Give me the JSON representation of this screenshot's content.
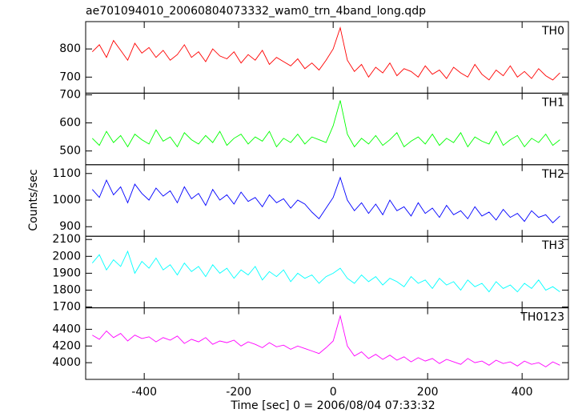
{
  "chart_data": [
    {
      "type": "line",
      "title": "ae701094010_20060804073332_wam0_trn_4band_long.qdp",
      "x": [
        -510,
        -495,
        -480,
        -465,
        -450,
        -435,
        -420,
        -405,
        -390,
        -375,
        -360,
        -345,
        -330,
        -315,
        -300,
        -285,
        -270,
        -255,
        -240,
        -225,
        -210,
        -195,
        -180,
        -165,
        -150,
        -135,
        -120,
        -105,
        -90,
        -75,
        -60,
        -45,
        -30,
        -15,
        0,
        15,
        30,
        45,
        60,
        75,
        90,
        105,
        120,
        135,
        150,
        165,
        180,
        195,
        210,
        225,
        240,
        255,
        270,
        285,
        300,
        315,
        330,
        345,
        360,
        375,
        390,
        405,
        420,
        435,
        450,
        465,
        480
      ],
      "series": [
        {
          "name": "TH0",
          "color": "#ff0000",
          "values": [
            790,
            815,
            770,
            830,
            795,
            760,
            820,
            785,
            805,
            770,
            795,
            760,
            780,
            815,
            770,
            790,
            755,
            800,
            775,
            765,
            790,
            750,
            780,
            760,
            795,
            745,
            770,
            755,
            740,
            765,
            730,
            750,
            725,
            760,
            800,
            875,
            760,
            720,
            745,
            700,
            735,
            715,
            750,
            705,
            730,
            720,
            700,
            740,
            710,
            725,
            695,
            735,
            715,
            700,
            745,
            710,
            690,
            725,
            705,
            740,
            700,
            720,
            695,
            730,
            705,
            690,
            715
          ]
        }
      ],
      "xlim": [
        -524,
        498
      ],
      "ylim": [
        643,
        897
      ],
      "yticks": [
        700,
        800
      ]
    },
    {
      "type": "line",
      "x": [
        -510,
        -495,
        -480,
        -465,
        -450,
        -435,
        -420,
        -405,
        -390,
        -375,
        -360,
        -345,
        -330,
        -315,
        -300,
        -285,
        -270,
        -255,
        -240,
        -225,
        -210,
        -195,
        -180,
        -165,
        -150,
        -135,
        -120,
        -105,
        -90,
        -75,
        -60,
        -45,
        -30,
        -15,
        0,
        15,
        30,
        45,
        60,
        75,
        90,
        105,
        120,
        135,
        150,
        165,
        180,
        195,
        210,
        225,
        240,
        255,
        270,
        285,
        300,
        315,
        330,
        345,
        360,
        375,
        390,
        405,
        420,
        435,
        450,
        465,
        480
      ],
      "series": [
        {
          "name": "TH1",
          "color": "#00ff00",
          "values": [
            545,
            520,
            570,
            530,
            555,
            515,
            560,
            540,
            525,
            575,
            535,
            550,
            515,
            565,
            540,
            525,
            555,
            530,
            570,
            520,
            545,
            560,
            525,
            550,
            535,
            570,
            515,
            545,
            530,
            560,
            525,
            550,
            540,
            530,
            590,
            680,
            560,
            515,
            545,
            525,
            555,
            520,
            540,
            565,
            515,
            535,
            550,
            525,
            560,
            520,
            545,
            530,
            565,
            515,
            550,
            535,
            525,
            570,
            520,
            540,
            555,
            515,
            545,
            530,
            560,
            520,
            540
          ]
        }
      ],
      "xlim": [
        -524,
        498
      ],
      "ylim": [
        451,
        706
      ],
      "yticks": [
        500,
        600,
        700
      ]
    },
    {
      "type": "line",
      "y_label": "Counts/sec",
      "x": [
        -510,
        -495,
        -480,
        -465,
        -450,
        -435,
        -420,
        -405,
        -390,
        -375,
        -360,
        -345,
        -330,
        -315,
        -300,
        -285,
        -270,
        -255,
        -240,
        -225,
        -210,
        -195,
        -180,
        -165,
        -150,
        -135,
        -120,
        -105,
        -90,
        -75,
        -60,
        -45,
        -30,
        -15,
        0,
        15,
        30,
        45,
        60,
        75,
        90,
        105,
        120,
        135,
        150,
        165,
        180,
        195,
        210,
        225,
        240,
        255,
        270,
        285,
        300,
        315,
        330,
        345,
        360,
        375,
        390,
        405,
        420,
        435,
        450,
        465,
        480
      ],
      "series": [
        {
          "name": "TH2",
          "color": "#0000ff",
          "values": [
            1040,
            1010,
            1075,
            1020,
            1050,
            990,
            1060,
            1025,
            1000,
            1045,
            1015,
            1035,
            990,
            1050,
            1005,
            1025,
            980,
            1040,
            1000,
            1020,
            985,
            1030,
            995,
            1010,
            975,
            1020,
            990,
            1005,
            970,
            1000,
            985,
            955,
            930,
            970,
            1010,
            1085,
            1000,
            960,
            990,
            950,
            985,
            945,
            1000,
            960,
            975,
            940,
            990,
            950,
            970,
            935,
            980,
            945,
            960,
            930,
            975,
            940,
            955,
            925,
            965,
            935,
            950,
            920,
            960,
            935,
            945,
            915,
            940
          ]
        }
      ],
      "xlim": [
        -524,
        498
      ],
      "ylim": [
        864,
        1133
      ],
      "yticks": [
        900,
        1000,
        1100
      ]
    },
    {
      "type": "line",
      "x": [
        -510,
        -495,
        -480,
        -465,
        -450,
        -435,
        -420,
        -405,
        -390,
        -375,
        -360,
        -345,
        -330,
        -315,
        -300,
        -285,
        -270,
        -255,
        -240,
        -225,
        -210,
        -195,
        -180,
        -165,
        -150,
        -135,
        -120,
        -105,
        -90,
        -75,
        -60,
        -45,
        -30,
        -15,
        0,
        15,
        30,
        45,
        60,
        75,
        90,
        105,
        120,
        135,
        150,
        165,
        180,
        195,
        210,
        225,
        240,
        255,
        270,
        285,
        300,
        315,
        330,
        345,
        360,
        375,
        390,
        405,
        420,
        435,
        450,
        465,
        480
      ],
      "series": [
        {
          "name": "TH3",
          "color": "#00ffff",
          "values": [
            1960,
            2010,
            1920,
            1980,
            1940,
            2030,
            1900,
            1970,
            1930,
            1990,
            1920,
            1950,
            1890,
            1960,
            1910,
            1940,
            1880,
            1950,
            1900,
            1930,
            1870,
            1920,
            1890,
            1940,
            1860,
            1910,
            1880,
            1920,
            1850,
            1900,
            1870,
            1890,
            1840,
            1880,
            1900,
            1930,
            1870,
            1840,
            1890,
            1850,
            1880,
            1830,
            1870,
            1850,
            1820,
            1880,
            1840,
            1860,
            1810,
            1870,
            1830,
            1850,
            1800,
            1860,
            1820,
            1840,
            1790,
            1850,
            1810,
            1830,
            1790,
            1840,
            1810,
            1860,
            1800,
            1820,
            1790
          ]
        }
      ],
      "xlim": [
        -524,
        498
      ],
      "ylim": [
        1695,
        2119
      ],
      "yticks": [
        1700,
        1800,
        1900,
        2000,
        2100
      ]
    },
    {
      "type": "line",
      "x_label": "Time [sec] 0 = 2006/08/04 07:33:32",
      "x": [
        -510,
        -495,
        -480,
        -465,
        -450,
        -435,
        -420,
        -405,
        -390,
        -375,
        -360,
        -345,
        -330,
        -315,
        -300,
        -285,
        -270,
        -255,
        -240,
        -225,
        -210,
        -195,
        -180,
        -165,
        -150,
        -135,
        -120,
        -105,
        -90,
        -75,
        -60,
        -45,
        -30,
        -15,
        0,
        15,
        30,
        45,
        60,
        75,
        90,
        105,
        120,
        135,
        150,
        165,
        180,
        195,
        210,
        225,
        240,
        255,
        270,
        285,
        300,
        315,
        330,
        345,
        360,
        375,
        390,
        405,
        420,
        435,
        450,
        465,
        480
      ],
      "series": [
        {
          "name": "TH0123",
          "color": "#ff00ff",
          "values": [
            4330,
            4280,
            4380,
            4300,
            4350,
            4260,
            4330,
            4290,
            4310,
            4250,
            4300,
            4270,
            4320,
            4230,
            4280,
            4250,
            4300,
            4220,
            4260,
            4240,
            4270,
            4200,
            4250,
            4220,
            4180,
            4240,
            4190,
            4210,
            4160,
            4200,
            4170,
            4140,
            4110,
            4180,
            4260,
            4560,
            4200,
            4080,
            4130,
            4050,
            4100,
            4040,
            4090,
            4030,
            4070,
            4010,
            4060,
            4020,
            4050,
            3990,
            4040,
            4010,
            3980,
            4050,
            4000,
            4020,
            3970,
            4030,
            3990,
            4010,
            3960,
            4020,
            3980,
            4000,
            3950,
            4010,
            3970
          ]
        }
      ],
      "xlim": [
        -524,
        498
      ],
      "ylim": [
        3800,
        4657
      ],
      "yticks": [
        4000,
        4200,
        4400
      ],
      "xticks": [
        -400,
        -200,
        0,
        200,
        400
      ]
    }
  ]
}
